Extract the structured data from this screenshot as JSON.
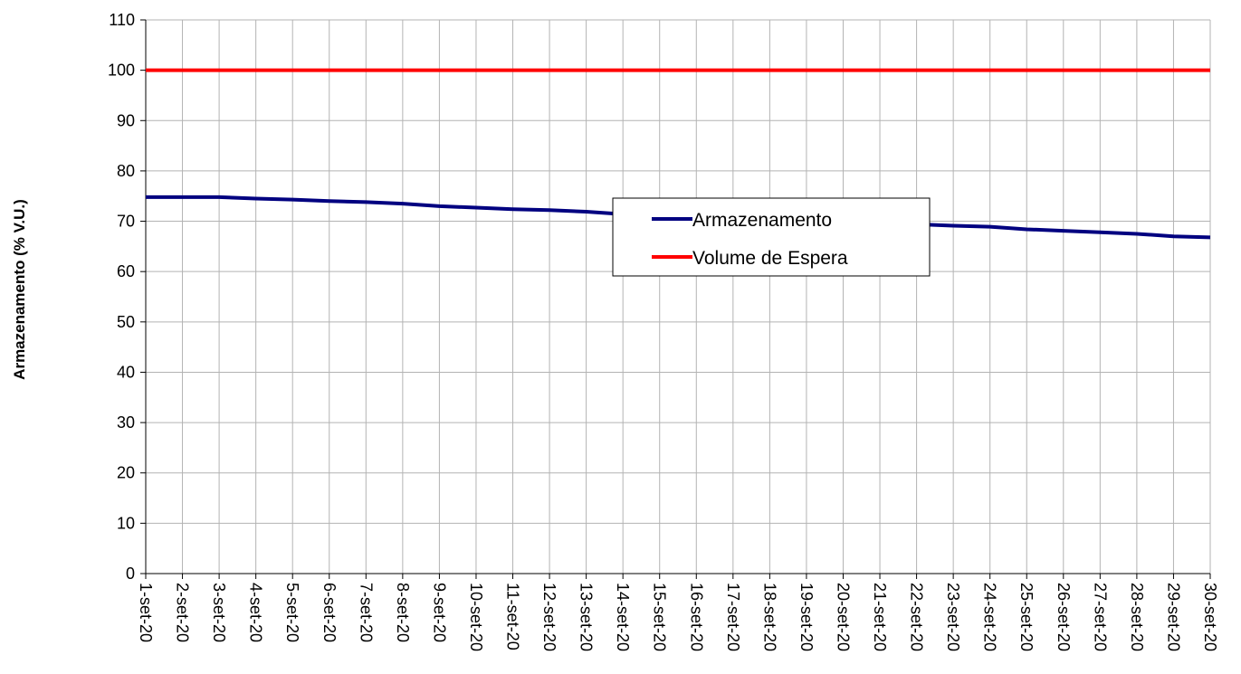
{
  "chart_data": {
    "type": "line",
    "title": "",
    "xlabel": "",
    "ylabel": "Armazenamento (% V.U.)",
    "ylim": [
      0,
      110
    ],
    "yticks": [
      0,
      10,
      20,
      30,
      40,
      50,
      60,
      70,
      80,
      90,
      100,
      110
    ],
    "grid": true,
    "legend_position": "center-right",
    "categories": [
      "1-set-20",
      "2-set-20",
      "3-set-20",
      "4-set-20",
      "5-set-20",
      "6-set-20",
      "7-set-20",
      "8-set-20",
      "9-set-20",
      "10-set-20",
      "11-set-20",
      "12-set-20",
      "13-set-20",
      "14-set-20",
      "15-set-20",
      "16-set-20",
      "17-set-20",
      "18-set-20",
      "19-set-20",
      "20-set-20",
      "21-set-20",
      "22-set-20",
      "23-set-20",
      "24-set-20",
      "25-set-20",
      "26-set-20",
      "27-set-20",
      "28-set-20",
      "29-set-20",
      "30-set-20"
    ],
    "series": [
      {
        "name": "Armazenamento",
        "color": "#000080",
        "values": [
          74.8,
          74.8,
          74.8,
          74.5,
          74.3,
          74.0,
          73.8,
          73.5,
          73.0,
          72.7,
          72.4,
          72.2,
          71.9,
          71.4,
          71.1,
          70.9,
          70.6,
          70.3,
          70.0,
          69.8,
          69.5,
          69.4,
          69.1,
          68.9,
          68.4,
          68.1,
          67.8,
          67.5,
          67.0,
          66.8
        ]
      },
      {
        "name": "Volume de Espera",
        "color": "#ff0000",
        "values": [
          100,
          100,
          100,
          100,
          100,
          100,
          100,
          100,
          100,
          100,
          100,
          100,
          100,
          100,
          100,
          100,
          100,
          100,
          100,
          100,
          100,
          100,
          100,
          100,
          100,
          100,
          100,
          100,
          100,
          100
        ]
      }
    ]
  }
}
